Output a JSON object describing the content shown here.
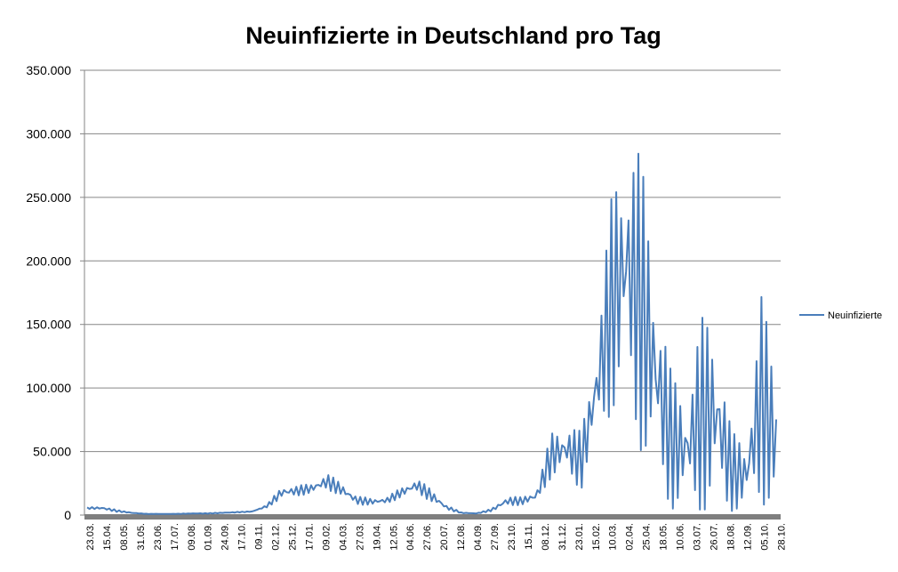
{
  "chart_data": {
    "type": "line",
    "title": "Neuinfizierte in Deutschland pro Tag",
    "ylim": [
      0,
      350000
    ],
    "ytick_labels": [
      "0",
      "50.000",
      "100.000",
      "150.000",
      "200.000",
      "250.000",
      "300.000",
      "350.000"
    ],
    "x_tick_labels": [
      "23.03.",
      "15.04.",
      "08.05.",
      "31.05.",
      "23.06.",
      "17.07.",
      "09.08.",
      "01.09.",
      "24.09.",
      "17.10.",
      "09.11.",
      "02.12.",
      "25.12.",
      "17.01.",
      "09.02.",
      "04.03.",
      "27.03.",
      "19.04.",
      "12.05.",
      "04.06.",
      "27.06.",
      "20.07.",
      "12.08.",
      "04.09.",
      "27.09.",
      "23.10.",
      "15.11.",
      "08.12.",
      "31.12.",
      "23.01.",
      "15.02.",
      "10.03.",
      "02.04.",
      "25.04.",
      "18.05.",
      "10.06.",
      "03.07.",
      "26.07.",
      "18.08.",
      "12.09.",
      "05.10.",
      "28.10."
    ],
    "grid": true,
    "legend_position": "right",
    "series": [
      {
        "name": "Neuinfizierte",
        "color": "#4a7ebb",
        "envelope_upper": [
          6000,
          7000,
          4000,
          2000,
          1000,
          1000,
          1000,
          1500,
          1500,
          2000,
          2500,
          3000,
          8000,
          23000,
          23000,
          25000,
          33000,
          25000,
          15000,
          13000,
          14000,
          22000,
          29000,
          20000,
          8000,
          2000,
          1500,
          5000,
          15000,
          14000,
          20000,
          65000,
          75000,
          65000,
          140000,
          250000,
          320000,
          280000,
          200000,
          110000,
          100000,
          155000,
          160000,
          65000,
          60000,
          175000,
          115000
        ],
        "envelope_lower": [
          5000,
          4000,
          2500,
          1500,
          800,
          800,
          800,
          1000,
          1000,
          1500,
          2000,
          2500,
          6000,
          13000,
          15000,
          17000,
          20000,
          15000,
          8000,
          8000,
          9000,
          14000,
          18000,
          10000,
          4000,
          1500,
          1000,
          3000,
          7000,
          8000,
          10000,
          30000,
          30000,
          20000,
          60000,
          80000,
          80000,
          50000,
          20000,
          5000,
          2000,
          2000,
          2000,
          3000,
          3000,
          10000,
          0
        ]
      }
    ]
  }
}
